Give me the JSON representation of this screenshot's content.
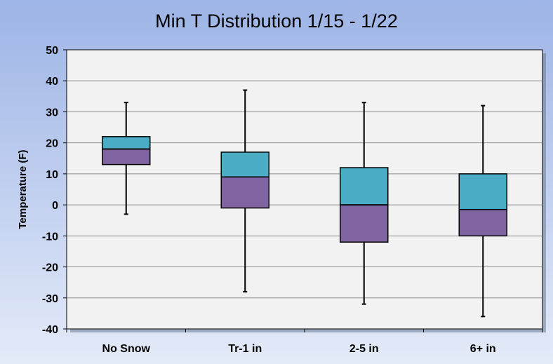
{
  "chart_data": {
    "type": "boxplot",
    "title": "Min T Distribution  1/15 - 1/22",
    "ylabel": "Temperature (F)",
    "xlabel": "",
    "ylim": [
      -40,
      50
    ],
    "yticks": [
      50,
      40,
      30,
      20,
      10,
      0,
      -10,
      -20,
      -30,
      -40
    ],
    "grid": true,
    "categories": [
      "No Snow",
      "Tr-1 in",
      "2-5 in",
      "6+ in"
    ],
    "boxes": [
      {
        "category": "No Snow",
        "min": -3,
        "q1": 13,
        "median": 18,
        "q3": 22,
        "max": 33
      },
      {
        "category": "Tr-1 in",
        "min": -28,
        "q1": -1,
        "median": 9,
        "q3": 17,
        "max": 37
      },
      {
        "category": "2-5 in",
        "min": -32,
        "q1": -12,
        "median": 0,
        "q3": 12,
        "max": 33
      },
      {
        "category": "6+ in",
        "min": -36,
        "q1": -10,
        "median": -1.5,
        "q3": 10,
        "max": 32
      }
    ],
    "colors": {
      "upper_box": "#4bacc6",
      "lower_box": "#8064a2",
      "plot_background": "#f2f2f2",
      "gridline": "#8c8c8c",
      "outline": "#000000"
    }
  }
}
